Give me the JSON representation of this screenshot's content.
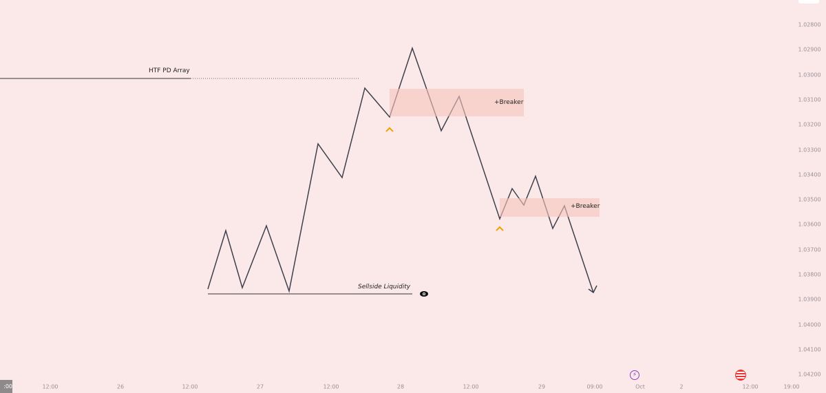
{
  "price_axis": [
    "1.02800",
    "1.02900",
    "1.03000",
    "1.03100",
    "1.03200",
    "1.03300",
    "1.03400",
    "1.03500",
    "1.03600",
    "1.03700",
    "1.03800",
    "1.03900",
    "1.04000",
    "1.04100",
    "1.04200"
  ],
  "time_axis": {
    "current": ":00",
    "labels": [
      "12:00",
      "26",
      "12:00",
      "27",
      "12:00",
      "28",
      "12:00",
      "29",
      "09:00",
      "Oct",
      "2",
      "12:00",
      "19:00"
    ]
  },
  "annotations": {
    "htf": "HTF PD Array",
    "sellside": "Sellside Liquidity",
    "breaker1": "+Breaker",
    "breaker2": "+Breaker"
  },
  "colors": {
    "background": "#fbe9e9",
    "line": "#3d3f4a",
    "breaker": "#f7c4bc",
    "caret": "#f5a000"
  }
}
